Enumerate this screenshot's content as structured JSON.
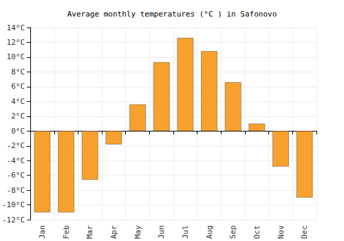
{
  "chart_data": {
    "type": "bar",
    "title": "Average monthly temperatures (°C ) in Safonovo",
    "categories": [
      "Jan",
      "Feb",
      "Mar",
      "Apr",
      "May",
      "Jun",
      "Jul",
      "Aug",
      "Sep",
      "Oct",
      "Nov",
      "Dec"
    ],
    "values": [
      -11,
      -11,
      -6.6,
      -1.8,
      3.6,
      9.3,
      12.6,
      10.8,
      6.6,
      1.0,
      -4.8,
      -9.0
    ],
    "color": "#f9a12e",
    "ylim": [
      -12,
      14
    ],
    "yticks": [
      {
        "value": -12,
        "label": "-12°C"
      },
      {
        "value": -10,
        "label": "-10°C"
      },
      {
        "value": -8,
        "label": "-8°C"
      },
      {
        "value": -6,
        "label": "-6°C"
      },
      {
        "value": -4,
        "label": "-4°C"
      },
      {
        "value": -2,
        "label": "-2°C"
      },
      {
        "value": 0,
        "label": "0°C"
      },
      {
        "value": 2,
        "label": "2°C"
      },
      {
        "value": 4,
        "label": "4°C"
      },
      {
        "value": 6,
        "label": "6°C"
      },
      {
        "value": 8,
        "label": "8°C"
      },
      {
        "value": 10,
        "label": "10°C"
      },
      {
        "value": 12,
        "label": "12°C"
      },
      {
        "value": 14,
        "label": "14°C"
      }
    ],
    "grid": true
  }
}
